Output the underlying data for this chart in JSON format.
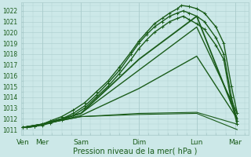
{
  "xlabel": "Pression niveau de la mer( hPa )",
  "bg_color": "#cce8e8",
  "grid_color": "#aacccc",
  "line_color": "#1a5c1a",
  "ylim": [
    1010.5,
    1022.8
  ],
  "yticks": [
    1011,
    1012,
    1013,
    1014,
    1015,
    1016,
    1017,
    1018,
    1019,
    1020,
    1021,
    1022
  ],
  "xtick_labels": [
    "Ven",
    "Mer",
    "Sam",
    "Dim",
    "Lun",
    "Mar"
  ],
  "xtick_positions": [
    0,
    0.5,
    1.5,
    3.0,
    4.5,
    5.5
  ],
  "xlim": [
    -0.05,
    5.85
  ],
  "series": [
    {
      "x": [
        0.0,
        0.1,
        0.3,
        0.5,
        0.7,
        1.0,
        1.3,
        1.6,
        1.9,
        2.2,
        2.5,
        2.8,
        3.0,
        3.2,
        3.4,
        3.6,
        3.8,
        4.0,
        4.1,
        4.3,
        4.5,
        4.7,
        5.0,
        5.2,
        5.4,
        5.55
      ],
      "y": [
        1011.2,
        1011.2,
        1011.3,
        1011.5,
        1011.8,
        1012.2,
        1012.8,
        1013.5,
        1014.5,
        1015.5,
        1016.8,
        1018.2,
        1019.2,
        1020.0,
        1020.8,
        1021.3,
        1021.8,
        1022.2,
        1022.5,
        1022.4,
        1022.2,
        1021.8,
        1020.5,
        1019.0,
        1015.0,
        1012.5
      ],
      "marker": "+",
      "lw": 1.0,
      "ms": 2.5
    },
    {
      "x": [
        0.0,
        0.1,
        0.3,
        0.5,
        0.7,
        1.0,
        1.3,
        1.6,
        1.9,
        2.2,
        2.5,
        2.8,
        3.0,
        3.2,
        3.4,
        3.6,
        3.8,
        4.0,
        4.15,
        4.3,
        4.5,
        4.7,
        5.0,
        5.2,
        5.4,
        5.55
      ],
      "y": [
        1011.2,
        1011.2,
        1011.3,
        1011.5,
        1011.7,
        1012.0,
        1012.5,
        1013.2,
        1014.2,
        1015.3,
        1016.5,
        1018.0,
        1019.0,
        1019.8,
        1020.5,
        1021.0,
        1021.5,
        1021.8,
        1022.0,
        1021.8,
        1021.5,
        1021.0,
        1019.5,
        1018.0,
        1014.0,
        1011.8
      ],
      "marker": "+",
      "lw": 1.0,
      "ms": 2.5
    },
    {
      "x": [
        0.0,
        0.1,
        0.3,
        0.5,
        0.7,
        1.0,
        1.3,
        1.6,
        1.9,
        2.2,
        2.5,
        2.8,
        3.0,
        3.2,
        3.4,
        3.6,
        3.8,
        4.0,
        4.15,
        4.3,
        4.5,
        4.7,
        5.0,
        5.2,
        5.4,
        5.55
      ],
      "y": [
        1011.2,
        1011.2,
        1011.3,
        1011.4,
        1011.6,
        1011.9,
        1012.3,
        1013.0,
        1014.0,
        1015.0,
        1016.2,
        1017.5,
        1018.5,
        1019.3,
        1020.0,
        1020.5,
        1021.0,
        1021.3,
        1021.5,
        1021.2,
        1020.8,
        1020.3,
        1018.8,
        1017.5,
        1013.5,
        1011.5
      ],
      "marker": "+",
      "lw": 1.0,
      "ms": 2.5
    },
    {
      "x": [
        0.0,
        0.5,
        1.5,
        3.0,
        4.5,
        5.55
      ],
      "y": [
        1011.2,
        1011.5,
        1012.5,
        1017.5,
        1021.5,
        1012.0
      ],
      "marker": null,
      "lw": 1.3
    },
    {
      "x": [
        0.0,
        0.5,
        1.5,
        3.0,
        4.5,
        5.55
      ],
      "y": [
        1011.2,
        1011.5,
        1012.5,
        1016.5,
        1020.5,
        1012.5
      ],
      "marker": null,
      "lw": 1.0
    },
    {
      "x": [
        0.0,
        0.5,
        1.5,
        3.0,
        4.5,
        5.55
      ],
      "y": [
        1011.2,
        1011.5,
        1012.3,
        1014.8,
        1017.8,
        1012.0
      ],
      "marker": null,
      "lw": 1.0
    },
    {
      "x": [
        0.0,
        0.5,
        1.5,
        3.0,
        4.5,
        5.55
      ],
      "y": [
        1011.2,
        1011.5,
        1012.2,
        1012.5,
        1012.6,
        1011.5
      ],
      "marker": null,
      "lw": 0.8
    },
    {
      "x": [
        0.0,
        0.5,
        1.5,
        3.0,
        4.5,
        5.55
      ],
      "y": [
        1011.2,
        1011.5,
        1012.2,
        1012.4,
        1012.5,
        1011.0
      ],
      "marker": null,
      "lw": 0.8
    }
  ]
}
